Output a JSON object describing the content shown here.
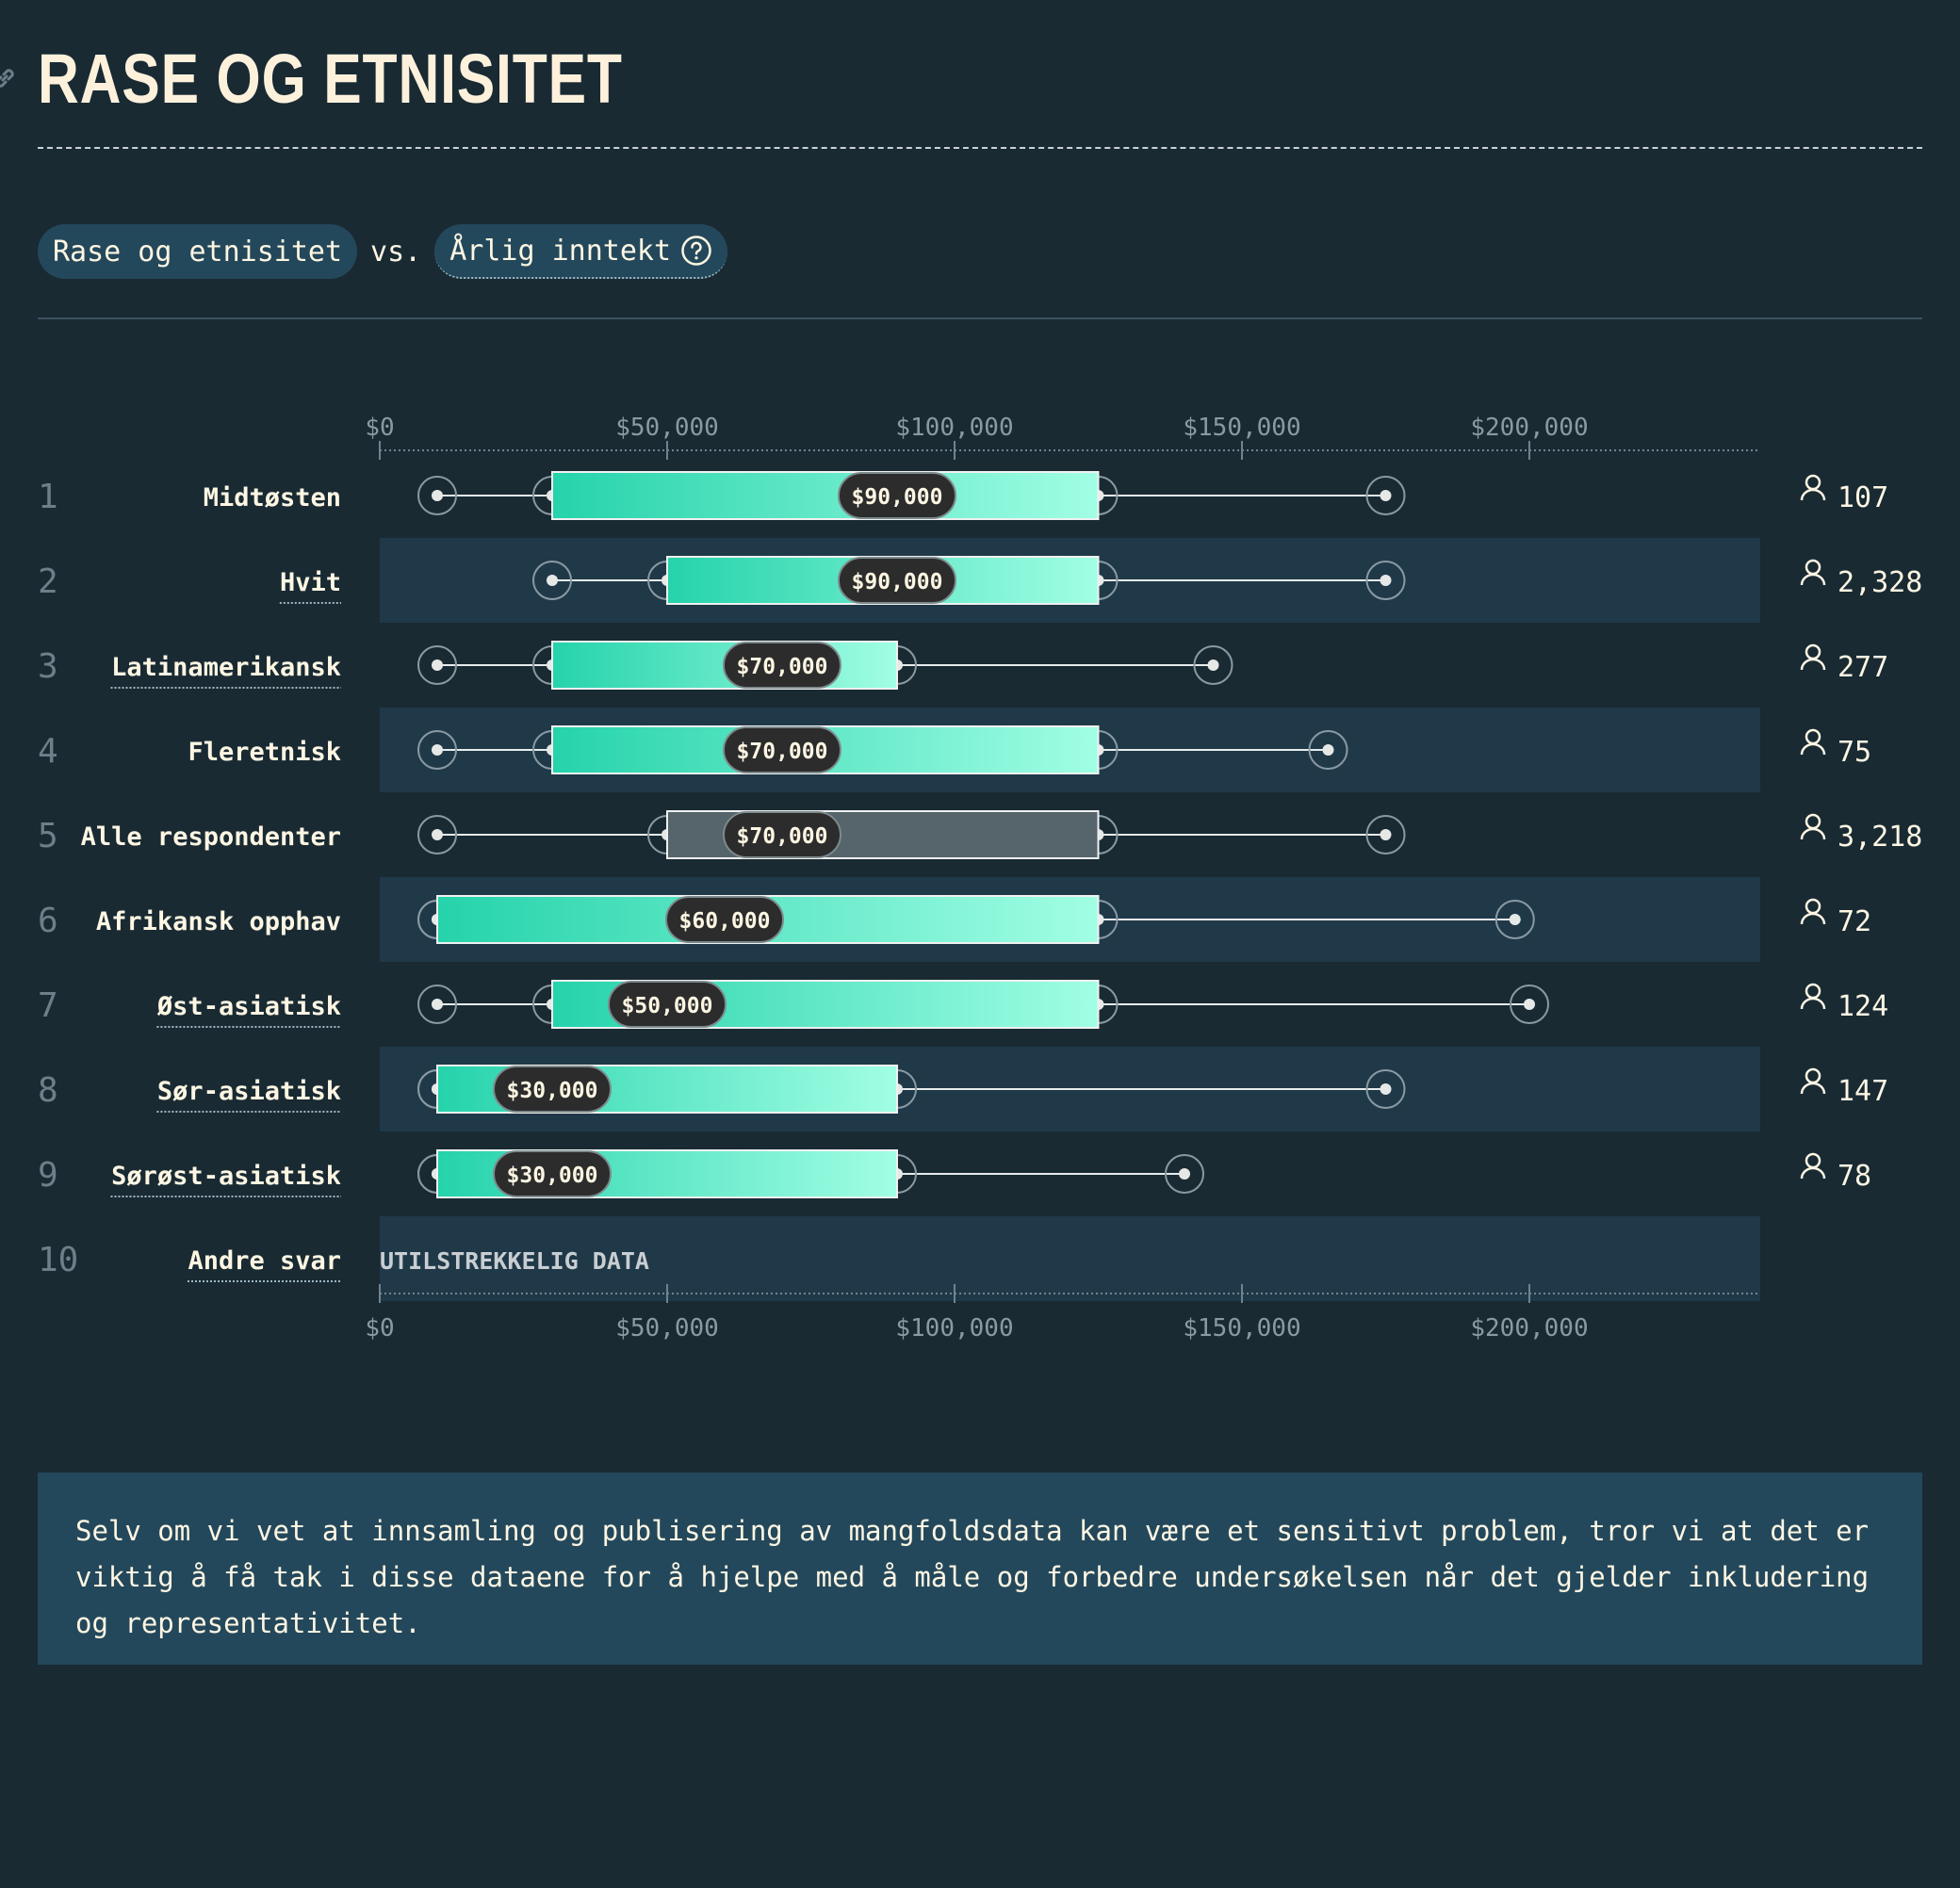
{
  "header": {
    "title": "RASE OG ETNISITET",
    "link_icon": "link-icon"
  },
  "filters": {
    "primary_label": "Rase og etnisitet",
    "vs_label": "vs.",
    "secondary_label": "Årlig inntekt",
    "help_icon": "question-circle-icon"
  },
  "chart_data": {
    "type": "boxplot",
    "x_ticks": [
      "$0",
      "$50,000",
      "$100,000",
      "$150,000",
      "$200,000"
    ],
    "x_tick_values": [
      0,
      50000,
      100000,
      150000,
      200000
    ],
    "xlim": [
      0,
      240000
    ],
    "insufficient_label": "UTILSTREKKELIG DATA",
    "count_icon": "person-icon",
    "rows": [
      {
        "rank": "1",
        "label": "Midtøsten",
        "min": 10000,
        "q1": 30000,
        "median": 90000,
        "median_label": "$90,000",
        "q3": 125000,
        "max": 175000,
        "count": "107",
        "underline": false,
        "highlight": false
      },
      {
        "rank": "2",
        "label": "Hvit",
        "min": 30000,
        "q1": 50000,
        "median": 90000,
        "median_label": "$90,000",
        "q3": 125000,
        "max": 175000,
        "count": "2,328",
        "underline": true,
        "highlight": false
      },
      {
        "rank": "3",
        "label": "Latinamerikansk",
        "min": 10000,
        "q1": 30000,
        "median": 70000,
        "median_label": "$70,000",
        "q3": 90000,
        "max": 145000,
        "count": "277",
        "underline": true,
        "highlight": false
      },
      {
        "rank": "4",
        "label": "Fleretnisk",
        "min": 10000,
        "q1": 30000,
        "median": 70000,
        "median_label": "$70,000",
        "q3": 125000,
        "max": 165000,
        "count": "75",
        "underline": false,
        "highlight": false
      },
      {
        "rank": "5",
        "label": "Alle respondenter",
        "min": 10000,
        "q1": 50000,
        "median": 70000,
        "median_label": "$70,000",
        "q3": 125000,
        "max": 175000,
        "count": "3,218",
        "underline": false,
        "highlight": true
      },
      {
        "rank": "6",
        "label": "Afrikansk opphav",
        "min": 10000,
        "q1": 10000,
        "median": 60000,
        "median_label": "$60,000",
        "q3": 125000,
        "max": 197500,
        "count": "72",
        "underline": false,
        "highlight": false
      },
      {
        "rank": "7",
        "label": "Øst-asiatisk",
        "min": 10000,
        "q1": 30000,
        "median": 50000,
        "median_label": "$50,000",
        "q3": 125000,
        "max": 200000,
        "count": "124",
        "underline": true,
        "highlight": false
      },
      {
        "rank": "8",
        "label": "Sør-asiatisk",
        "min": 10000,
        "q1": 10000,
        "median": 30000,
        "median_label": "$30,000",
        "q3": 90000,
        "max": 175000,
        "count": "147",
        "underline": true,
        "highlight": false
      },
      {
        "rank": "9",
        "label": "Sørøst-asiatisk",
        "min": 10000,
        "q1": 10000,
        "median": 30000,
        "median_label": "$30,000",
        "q3": 90000,
        "max": 140000,
        "count": "78",
        "underline": true,
        "highlight": false
      },
      {
        "rank": "10",
        "label": "Andre svar",
        "insufficient": true,
        "count": "",
        "underline": true,
        "highlight": false
      }
    ]
  },
  "note": {
    "text": "Selv om vi vet at innsamling og publisering av mangfoldsdata kan være et sensitivt problem, tror vi at det er viktig å få tak i disse dataene for å hjelpe med å måle og forbedre undersøkelsen når det gjelder inkludering og representativitet."
  }
}
